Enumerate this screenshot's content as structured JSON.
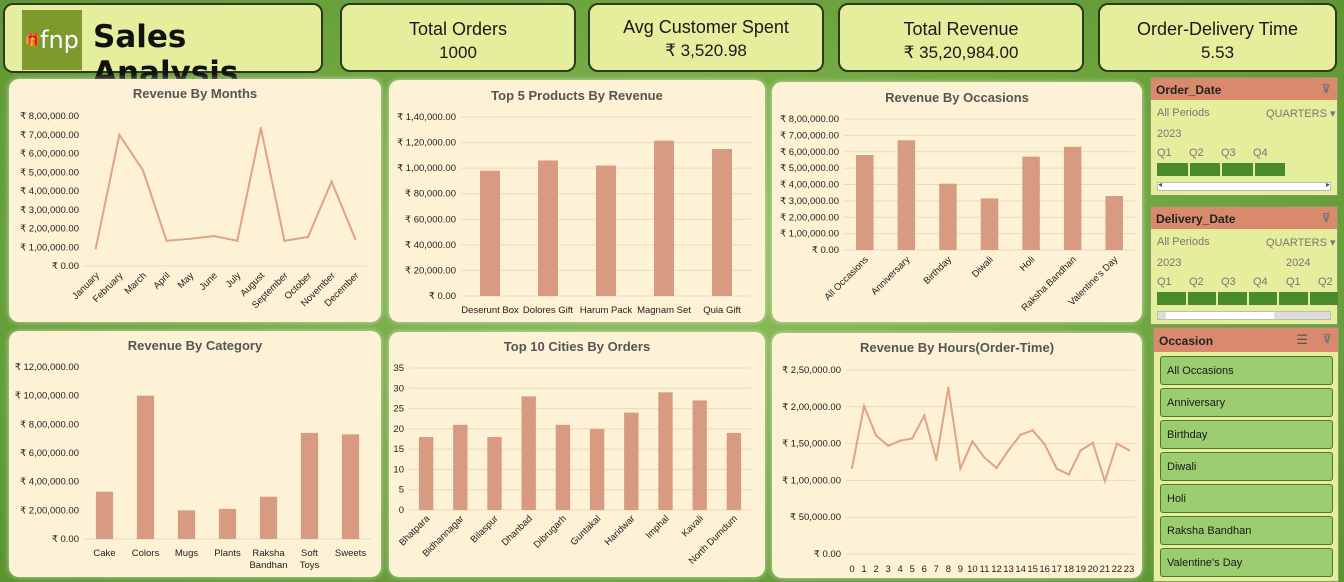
{
  "header": {
    "logo_text": "fnp",
    "title": "Sales Analysis"
  },
  "kpis": [
    {
      "label": "Total Orders",
      "value": "1000"
    },
    {
      "label": "Avg Customer Spent",
      "value": "₹ 3,520.98"
    },
    {
      "label": "Total Revenue",
      "value": "₹ 35,20,984.00"
    },
    {
      "label": "Order-Delivery Time",
      "value": "5.53"
    }
  ],
  "colors": {
    "bar": "#d89a80",
    "line": "#e2a286",
    "panel": "#fdf1d6",
    "grid": "#ead9c0",
    "slicer_header": "#d9896c",
    "slicer_fill": "#4a8a2a",
    "occasion_button": "#9bcc70"
  },
  "chart_data": [
    {
      "id": "months",
      "type": "line",
      "title": "Revenue By Months",
      "categories": [
        "January",
        "February",
        "March",
        "April",
        "May",
        "June",
        "July",
        "August",
        "September",
        "October",
        "November",
        "December"
      ],
      "values": [
        95000,
        700000,
        510000,
        135000,
        145000,
        160000,
        135000,
        735000,
        135000,
        155000,
        450000,
        145000
      ],
      "ylim": [
        0,
        800000
      ],
      "ticks": [
        0,
        100000,
        200000,
        300000,
        400000,
        500000,
        600000,
        700000,
        800000
      ],
      "tick_labels": [
        "₹ 0.00",
        "₹ 1,00,000.00",
        "₹ 2,00,000.00",
        "₹ 3,00,000.00",
        "₹ 4,00,000.00",
        "₹ 5,00,000.00",
        "₹ 6,00,000.00",
        "₹ 7,00,000.00",
        "₹ 8,00,000.00"
      ],
      "grid": false
    },
    {
      "id": "products",
      "type": "bar",
      "title": "Top 5 Products By Revenue",
      "categories": [
        "Deserunt Box",
        "Dolores Gift",
        "Harum Pack",
        "Magnam Set",
        "Quia Gift"
      ],
      "values": [
        98000,
        106000,
        102000,
        121500,
        115000
      ],
      "ylim": [
        0,
        140000
      ],
      "ticks": [
        0,
        20000,
        40000,
        60000,
        80000,
        100000,
        120000,
        140000
      ],
      "tick_labels": [
        "₹ 0.00",
        "₹ 20,000.00",
        "₹ 40,000.00",
        "₹ 60,000.00",
        "₹ 80,000.00",
        "₹ 1,00,000.00",
        "₹ 1,20,000.00",
        "₹ 1,40,000.00"
      ],
      "grid": true
    },
    {
      "id": "occasions",
      "type": "bar",
      "title": "Revenue By Occasions",
      "categories": [
        "All Occasions",
        "Anniversary",
        "Birthday",
        "Diwali",
        "Holi",
        "Raksha Bandhan",
        "Valentine's Day"
      ],
      "values": [
        580000,
        670000,
        405000,
        315000,
        570000,
        630000,
        330000
      ],
      "ylim": [
        0,
        800000
      ],
      "ticks": [
        0,
        100000,
        200000,
        300000,
        400000,
        500000,
        600000,
        700000,
        800000
      ],
      "tick_labels": [
        "₹ 0.00",
        "₹ 1,00,000.00",
        "₹ 2,00,000.00",
        "₹ 3,00,000.00",
        "₹ 4,00,000.00",
        "₹ 5,00,000.00",
        "₹ 6,00,000.00",
        "₹ 7,00,000.00",
        "₹ 8,00,000.00"
      ],
      "grid": true
    },
    {
      "id": "category",
      "type": "bar",
      "title": "Revenue By Category",
      "categories": [
        "Cake",
        "Colors",
        "Mugs",
        "Plants",
        "Raksha Bandhan",
        "Soft Toys",
        "Sweets"
      ],
      "values": [
        330000,
        1000000,
        200000,
        210000,
        295000,
        740000,
        730000
      ],
      "ylim": [
        0,
        1200000
      ],
      "ticks": [
        0,
        200000,
        400000,
        600000,
        800000,
        1000000,
        1200000
      ],
      "tick_labels": [
        "₹ 0.00",
        "₹ 2,00,000.00",
        "₹ 4,00,000.00",
        "₹ 6,00,000.00",
        "₹ 8,00,000.00",
        "₹ 10,00,000.00",
        "₹ 12,00,000.00"
      ],
      "grid": false
    },
    {
      "id": "cities",
      "type": "bar",
      "title": "Top 10 Cities By Orders",
      "categories": [
        "Bhatpara",
        "Bidhannagar",
        "Bilaspur",
        "Dhanbad",
        "Dibrugarh",
        "Guntakal",
        "Haridwar",
        "Imphal",
        "Kavali",
        "North Dumdum"
      ],
      "values": [
        18,
        21,
        18,
        28,
        21,
        20,
        24,
        29,
        27,
        19
      ],
      "ylim": [
        0,
        35
      ],
      "ticks": [
        0,
        5,
        10,
        15,
        20,
        25,
        30,
        35
      ],
      "tick_labels": [
        "0",
        "5",
        "10",
        "15",
        "20",
        "25",
        "30",
        "35"
      ],
      "grid": true
    },
    {
      "id": "hours",
      "type": "line",
      "title": "Revenue By Hours(Order-Time)",
      "categories": [
        "0",
        "1",
        "2",
        "3",
        "4",
        "5",
        "6",
        "7",
        "8",
        "9",
        "10",
        "11",
        "12",
        "13",
        "14",
        "15",
        "16",
        "17",
        "18",
        "19",
        "20",
        "21",
        "22",
        "23"
      ],
      "values": [
        117000,
        201000,
        161000,
        147000,
        154000,
        157000,
        188000,
        128000,
        226000,
        116000,
        153000,
        131000,
        117000,
        141000,
        162000,
        168000,
        149000,
        116000,
        108000,
        141000,
        151000,
        99000,
        150000,
        141000
      ],
      "ylim": [
        0,
        250000
      ],
      "ticks": [
        0,
        50000,
        100000,
        150000,
        200000,
        250000
      ],
      "tick_labels": [
        "₹ 0.00",
        "₹ 50,000.00",
        "₹ 1,00,000.00",
        "₹ 1,50,000.00",
        "₹ 2,00,000.00",
        "₹ 2,50,000.00"
      ],
      "grid": true
    }
  ],
  "slicers": {
    "order_date": {
      "title": "Order_Date",
      "all_periods": "All Periods",
      "level": "QUARTERS",
      "years": [
        "2023"
      ],
      "quarters": [
        "Q1",
        "Q2",
        "Q3",
        "Q4"
      ]
    },
    "delivery_date": {
      "title": "Delivery_Date",
      "all_periods": "All Periods",
      "level": "QUARTERS",
      "years": [
        "2023",
        "2024"
      ],
      "quarters": [
        "Q1",
        "Q2",
        "Q3",
        "Q4",
        "Q1",
        "Q2"
      ]
    },
    "occasion": {
      "title": "Occasion",
      "items": [
        "All Occasions",
        "Anniversary",
        "Birthday",
        "Diwali",
        "Holi",
        "Raksha Bandhan",
        "Valentine's Day"
      ]
    }
  }
}
